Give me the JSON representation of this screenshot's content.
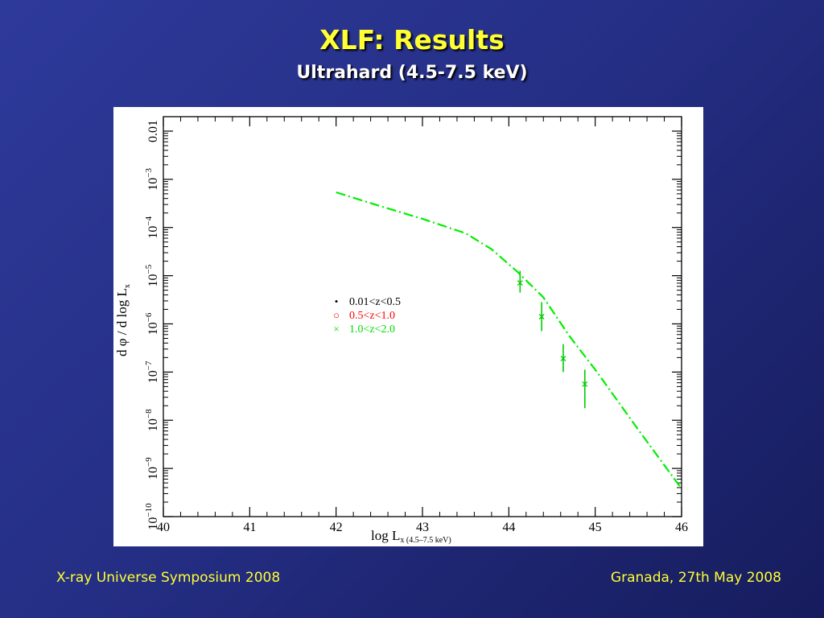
{
  "slide": {
    "title": "XLF: Results",
    "subtitle": "Ultrahard (4.5-7.5 keV)",
    "footer_left": "X-ray Universe Symposium 2008",
    "footer_right": "Granada, 27th May 2008"
  },
  "chart_data": {
    "type": "line",
    "xlabel_main": "log L",
    "xlabel_sub": "x (4.5–7.5 keV)",
    "ylabel_main": "d φ / d log L",
    "ylabel_sub": "x",
    "xlim": [
      40,
      46
    ],
    "ylim_log10": [
      -10,
      -1.7
    ],
    "y_scale": "log",
    "x_ticks": [
      40,
      41,
      42,
      43,
      44,
      45,
      46
    ],
    "y_ticks": [
      {
        "exp": -10,
        "base": "10",
        "sup": "−10"
      },
      {
        "exp": -9,
        "base": "10",
        "sup": "−9"
      },
      {
        "exp": -8,
        "base": "10",
        "sup": "−8"
      },
      {
        "exp": -7,
        "base": "10",
        "sup": "−7"
      },
      {
        "exp": -6,
        "base": "10",
        "sup": "−6"
      },
      {
        "exp": -5,
        "base": "10",
        "sup": "−5"
      },
      {
        "exp": -4,
        "base": "10",
        "sup": "−4"
      },
      {
        "exp": -3,
        "base": "10",
        "sup": "−3"
      },
      {
        "exp": -2,
        "base": "0.01",
        "sup": ""
      }
    ],
    "legend": [
      {
        "label": "0.01<z<0.5",
        "marker": "•",
        "color": "#000000"
      },
      {
        "label": "0.5<z<1.0",
        "marker": "○",
        "color": "#ff0000"
      },
      {
        "label": "1.0<z<2.0",
        "marker": "×",
        "color": "#00dd00"
      }
    ],
    "legend_position": "center-left",
    "model_curve": {
      "color": "#00ee00",
      "style": "dash-dot",
      "x": [
        42.0,
        42.5,
        43.0,
        43.5,
        43.8,
        44.1,
        44.4,
        44.7,
        45.0,
        45.5,
        46.0
      ],
      "log10_y": [
        -3.27,
        -3.55,
        -3.82,
        -4.12,
        -4.45,
        -4.92,
        -5.45,
        -6.25,
        -6.95,
        -8.2,
        -9.42
      ]
    },
    "data_points": {
      "series": "1.0<z<2.0",
      "color": "#00cc00",
      "x": [
        44.13,
        44.38,
        44.63,
        44.88
      ],
      "log10_y": [
        -5.15,
        -5.85,
        -6.72,
        -7.25
      ],
      "log10_err_low": [
        -5.35,
        -6.15,
        -7.0,
        -7.75
      ],
      "log10_err_high": [
        -4.9,
        -5.55,
        -6.42,
        -6.95
      ]
    }
  }
}
